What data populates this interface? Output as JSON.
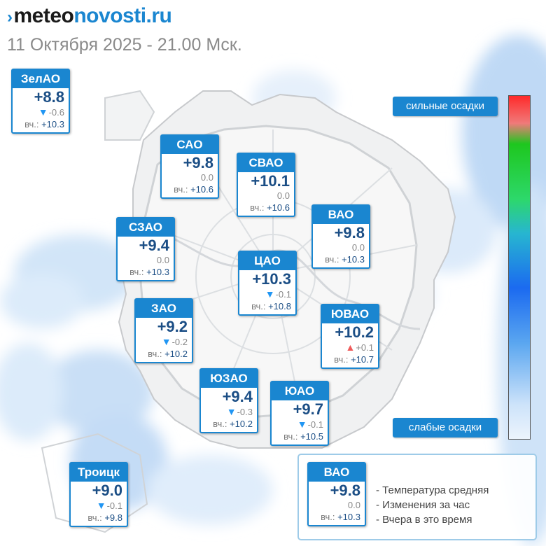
{
  "header": {
    "logo_prefix": "meteo",
    "logo_suffix": "novosti.ru",
    "date": "11 Октября 2025 - 21.00 Мск."
  },
  "scale": {
    "top_label": "сильные осадки",
    "bottom_label": "слабые осадки"
  },
  "labels": {
    "yesterday": "вч.:"
  },
  "districts": [
    {
      "id": "zelao",
      "name": "ЗелАО",
      "temp": "+8.8",
      "change": "-0.6",
      "trend": "down",
      "yesterday": "+10.3"
    },
    {
      "id": "sao",
      "name": "САО",
      "temp": "+9.8",
      "change": "0.0",
      "trend": "none",
      "yesterday": "+10.6"
    },
    {
      "id": "svao",
      "name": "СВАО",
      "temp": "+10.1",
      "change": "0.0",
      "trend": "none",
      "yesterday": "+10.6"
    },
    {
      "id": "vao",
      "name": "ВАО",
      "temp": "+9.8",
      "change": "0.0",
      "trend": "none",
      "yesterday": "+10.3"
    },
    {
      "id": "szao",
      "name": "СЗАО",
      "temp": "+9.4",
      "change": "0.0",
      "trend": "none",
      "yesterday": "+10.3"
    },
    {
      "id": "cao",
      "name": "ЦАО",
      "temp": "+10.3",
      "change": "-0.1",
      "trend": "down",
      "yesterday": "+10.8"
    },
    {
      "id": "zao",
      "name": "ЗАО",
      "temp": "+9.2",
      "change": "-0.2",
      "trend": "down",
      "yesterday": "+10.2"
    },
    {
      "id": "yuvao",
      "name": "ЮВАО",
      "temp": "+10.2",
      "change": "+0.1",
      "trend": "up",
      "yesterday": "+10.7"
    },
    {
      "id": "yuzao",
      "name": "ЮЗАО",
      "temp": "+9.4",
      "change": "-0.3",
      "trend": "down",
      "yesterday": "+10.2"
    },
    {
      "id": "yuao",
      "name": "ЮАО",
      "temp": "+9.7",
      "change": "-0.1",
      "trend": "down",
      "yesterday": "+10.5"
    },
    {
      "id": "troitsk",
      "name": "Троицк",
      "temp": "+9.0",
      "change": "-0.1",
      "trend": "down",
      "yesterday": "+9.8"
    }
  ],
  "legend": {
    "sample": {
      "name": "ВАО",
      "temp": "+9.8",
      "change": "0.0",
      "trend": "none",
      "yesterday": "+10.3"
    },
    "line1": "- Температура средняя",
    "line2": "- Изменения за час",
    "line3": "- Вчера в это время"
  }
}
